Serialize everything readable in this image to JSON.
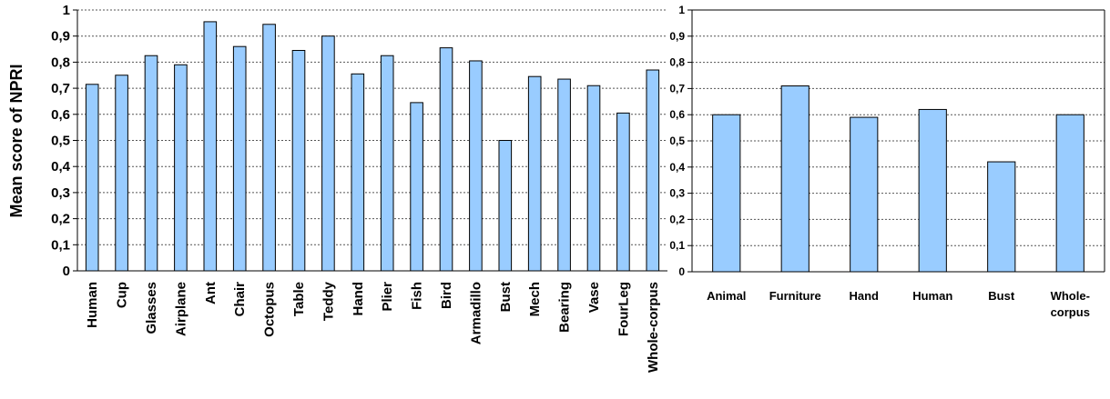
{
  "chart_data": [
    {
      "type": "bar",
      "ylabel": "Mean score of NPRI",
      "xlabel": "",
      "ylim": [
        0,
        1
      ],
      "yticks": [
        "0",
        "0,1",
        "0,2",
        "0,3",
        "0,4",
        "0,5",
        "0,6",
        "0,7",
        "0,8",
        "0,9",
        "1"
      ],
      "grid": "horizontal dashed",
      "bar_color": "#99ccff",
      "categories": [
        "Human",
        "Cup",
        "Glasses",
        "Airplane",
        "Ant",
        "Chair",
        "Octopus",
        "Table",
        "Teddy",
        "Hand",
        "Plier",
        "Fish",
        "Bird",
        "Armadillo",
        "Bust",
        "Mech",
        "Bearing",
        "Vase",
        "FourLeg",
        "Whole-corpus"
      ],
      "values": [
        0.715,
        0.75,
        0.825,
        0.79,
        0.955,
        0.86,
        0.945,
        0.845,
        0.9,
        0.755,
        0.825,
        0.645,
        0.855,
        0.805,
        0.5,
        0.745,
        0.735,
        0.71,
        0.605,
        0.77
      ]
    },
    {
      "type": "bar",
      "ylabel": "",
      "xlabel": "",
      "ylim": [
        0,
        1
      ],
      "yticks": [
        "0",
        "0,1",
        "0,2",
        "0,3",
        "0,4",
        "0,5",
        "0,6",
        "0,7",
        "0,8",
        "0,9",
        "1"
      ],
      "grid": "horizontal dashed",
      "bar_color": "#99ccff",
      "categories": [
        [
          "Animal"
        ],
        [
          "Furniture"
        ],
        [
          "Hand"
        ],
        [
          "Human"
        ],
        [
          "Bust"
        ],
        [
          "Whole-",
          "corpus"
        ]
      ],
      "values": [
        0.6,
        0.71,
        0.59,
        0.62,
        0.42,
        0.6
      ]
    }
  ]
}
